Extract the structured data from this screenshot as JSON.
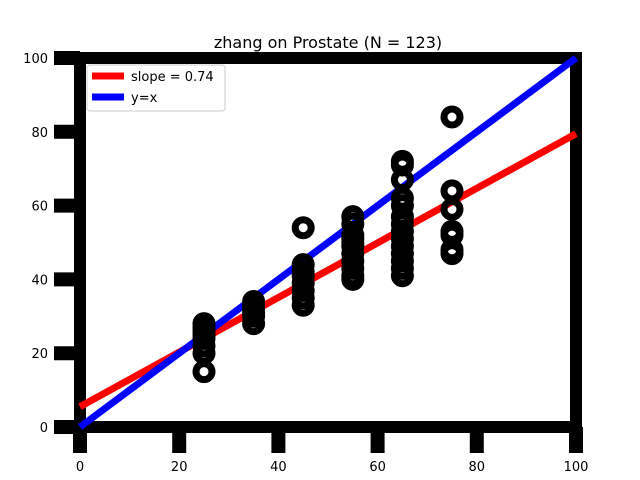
{
  "chart_data": {
    "type": "scatter",
    "title": "zhang on Prostate (N = 123)",
    "xlabel": "",
    "ylabel": "",
    "xlim": [
      0,
      100
    ],
    "ylim": [
      0,
      100
    ],
    "xticks": [
      0,
      20,
      40,
      60,
      80,
      100
    ],
    "yticks": [
      0,
      20,
      40,
      60,
      80,
      100
    ],
    "grid": false,
    "legend_position": "top-left",
    "points": {
      "color": "#000000",
      "x": [
        25,
        25,
        25,
        25,
        25,
        25,
        25,
        25,
        35,
        35,
        35,
        35,
        35,
        35,
        45,
        45,
        45,
        45,
        45,
        45,
        45,
        45,
        55,
        55,
        55,
        55,
        55,
        55,
        55,
        55,
        55,
        55,
        55,
        65,
        65,
        65,
        65,
        65,
        65,
        65,
        65,
        65,
        65,
        65,
        65,
        65,
        65,
        75,
        75,
        75,
        75,
        75,
        75,
        75
      ],
      "y": [
        15,
        20,
        22,
        24,
        25,
        26,
        27,
        28,
        28,
        30,
        31,
        32,
        33,
        34,
        33,
        35,
        37,
        39,
        41,
        42,
        44,
        54,
        40,
        41,
        43,
        45,
        47,
        49,
        50,
        51,
        52,
        55,
        57,
        41,
        43,
        45,
        47,
        49,
        51,
        53,
        55,
        57,
        60,
        62,
        67,
        71,
        72,
        47,
        48,
        52,
        53,
        59,
        64,
        84
      ]
    },
    "lines": [
      {
        "name": "slope = 0.74",
        "color": "#ff0000",
        "x": [
          0,
          100
        ],
        "y": [
          5.5,
          79.5
        ]
      },
      {
        "name": "y=x",
        "color": "#0000ff",
        "x": [
          0,
          100
        ],
        "y": [
          0,
          100
        ]
      }
    ],
    "tick_labels": {
      "x": [
        "0",
        "20",
        "40",
        "60",
        "80",
        "100"
      ],
      "y": [
        "0",
        "20",
        "40",
        "60",
        "80",
        "100"
      ]
    }
  }
}
